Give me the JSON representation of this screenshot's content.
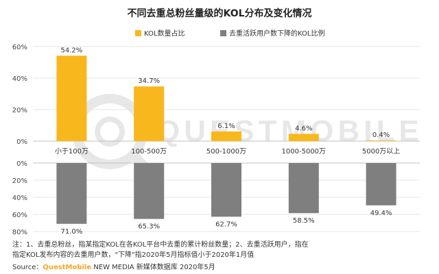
{
  "chart_data": {
    "type": "bar",
    "title": "不同去重总粉丝量级的KOL分布及变化情况",
    "categories": [
      "小于100万",
      "100-500万",
      "500-1000万",
      "1000-5000万",
      "5000万以上"
    ],
    "series": [
      {
        "name": "KOL数量占比",
        "values": [
          54.2,
          34.7,
          6.1,
          4.6,
          0.4
        ],
        "labels": [
          "54.2%",
          "34.7%",
          "6.1%",
          "4.6%",
          "0.4%"
        ],
        "color": "#F9B71E"
      },
      {
        "name": "去重活跃用户数下降的KOL比例",
        "values": [
          71.0,
          65.3,
          62.7,
          58.5,
          49.4
        ],
        "labels": [
          "71.0%",
          "65.3%",
          "62.7%",
          "58.5%",
          "49.4%"
        ],
        "color": "#7F7F7F"
      }
    ],
    "top_axis": {
      "ylim": [
        0,
        60
      ],
      "ticks": [
        "0%",
        "20%",
        "40%",
        "60%"
      ]
    },
    "bottom_axis": {
      "ylim": [
        0,
        80
      ],
      "ticks": [
        "0%",
        "20%",
        "40%",
        "60%",
        "80%"
      ],
      "inverted": true
    },
    "grid": true,
    "legend_position": "top-right"
  },
  "watermark": "QUESTMOBILE",
  "footnote": {
    "line1": "注：1、去重总粉丝，指某指定KOL在各KOL平台中去重的累计粉丝数量；2、去重活跃用户，指在",
    "line2": "指定KOL发布内容的去重用户数，\"下降\"指2020年5月指标值小于2020年1月值"
  },
  "source": {
    "prefix": "Source：",
    "brand": "QuestMobile",
    "rest": " NEW MEDIA 新媒体数据库 2020年5月"
  }
}
